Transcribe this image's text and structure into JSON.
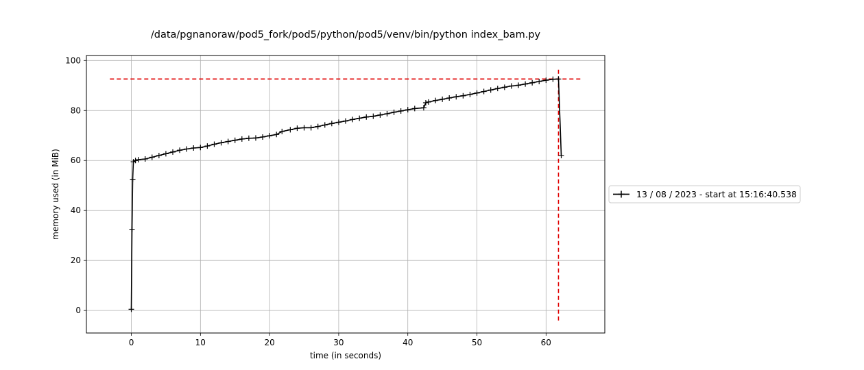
{
  "chart_data": {
    "type": "line",
    "title": "/data/pgnanoraw/pod5_fork/pod5/python/pod5/venv/bin/python index_bam.py",
    "xlabel": "time (in seconds)",
    "ylabel": "memory used (in MiB)",
    "xlim": [
      -6.5,
      68.5
    ],
    "ylim": [
      -9,
      102
    ],
    "xticks": [
      0,
      10,
      20,
      30,
      40,
      50,
      60
    ],
    "yticks": [
      0,
      20,
      40,
      60,
      80,
      100
    ],
    "grid": true,
    "legend_position": "right",
    "series": [
      {
        "name": "13 / 08 / 2023 - start at 15:16:40.538",
        "color": "#000000",
        "marker": "+",
        "points": [
          [
            0,
            0.5
          ],
          [
            0.1,
            32.5
          ],
          [
            0.2,
            52.5
          ],
          [
            0.3,
            59.5
          ],
          [
            0.6,
            60
          ],
          [
            1,
            60.3
          ],
          [
            2,
            60.6
          ],
          [
            3,
            61.3
          ],
          [
            4,
            62
          ],
          [
            5,
            62.7
          ],
          [
            6,
            63.4
          ],
          [
            7,
            64.1
          ],
          [
            8,
            64.6
          ],
          [
            9,
            65
          ],
          [
            10,
            65.2
          ],
          [
            11,
            65.8
          ],
          [
            12,
            66.5
          ],
          [
            13,
            67.1
          ],
          [
            14,
            67.6
          ],
          [
            15,
            68.1
          ],
          [
            16,
            68.6
          ],
          [
            17,
            68.9
          ],
          [
            18,
            69
          ],
          [
            19,
            69.4
          ],
          [
            20,
            69.9
          ],
          [
            21,
            70.4
          ],
          [
            21.8,
            71.6
          ],
          [
            23,
            72.3
          ],
          [
            24,
            72.9
          ],
          [
            25,
            73.1
          ],
          [
            26,
            73.1
          ],
          [
            27,
            73.6
          ],
          [
            28,
            74.2
          ],
          [
            29,
            74.8
          ],
          [
            30,
            75.3
          ],
          [
            31,
            75.8
          ],
          [
            32,
            76.4
          ],
          [
            33,
            76.9
          ],
          [
            34,
            77.4
          ],
          [
            35,
            77.7
          ],
          [
            36,
            78.2
          ],
          [
            37,
            78.7
          ],
          [
            38,
            79.3
          ],
          [
            39,
            79.8
          ],
          [
            40,
            80.3
          ],
          [
            41,
            80.8
          ],
          [
            42.3,
            81.1
          ],
          [
            42.6,
            83.1
          ],
          [
            43,
            83.4
          ],
          [
            44,
            84
          ],
          [
            45,
            84.5
          ],
          [
            46,
            85
          ],
          [
            47,
            85.5
          ],
          [
            48,
            85.9
          ],
          [
            49,
            86.4
          ],
          [
            50,
            87
          ],
          [
            51,
            87.6
          ],
          [
            52,
            88.2
          ],
          [
            53,
            88.8
          ],
          [
            54,
            89.3
          ],
          [
            55,
            89.8
          ],
          [
            56,
            90.1
          ],
          [
            57,
            90.6
          ],
          [
            58,
            91.1
          ],
          [
            59,
            91.6
          ],
          [
            60,
            92.1
          ],
          [
            61,
            92.5
          ],
          [
            61.8,
            92.6
          ],
          [
            62.2,
            62
          ]
        ]
      }
    ],
    "reference_lines": [
      {
        "orientation": "horizontal",
        "y": 92.6,
        "x_from": -3.1,
        "x_to": 65.3,
        "color": "#e00000",
        "style": "dashed"
      },
      {
        "orientation": "vertical",
        "x": 61.8,
        "y_from": -4,
        "y_to": 97,
        "color": "#e00000",
        "style": "dashed"
      }
    ]
  }
}
